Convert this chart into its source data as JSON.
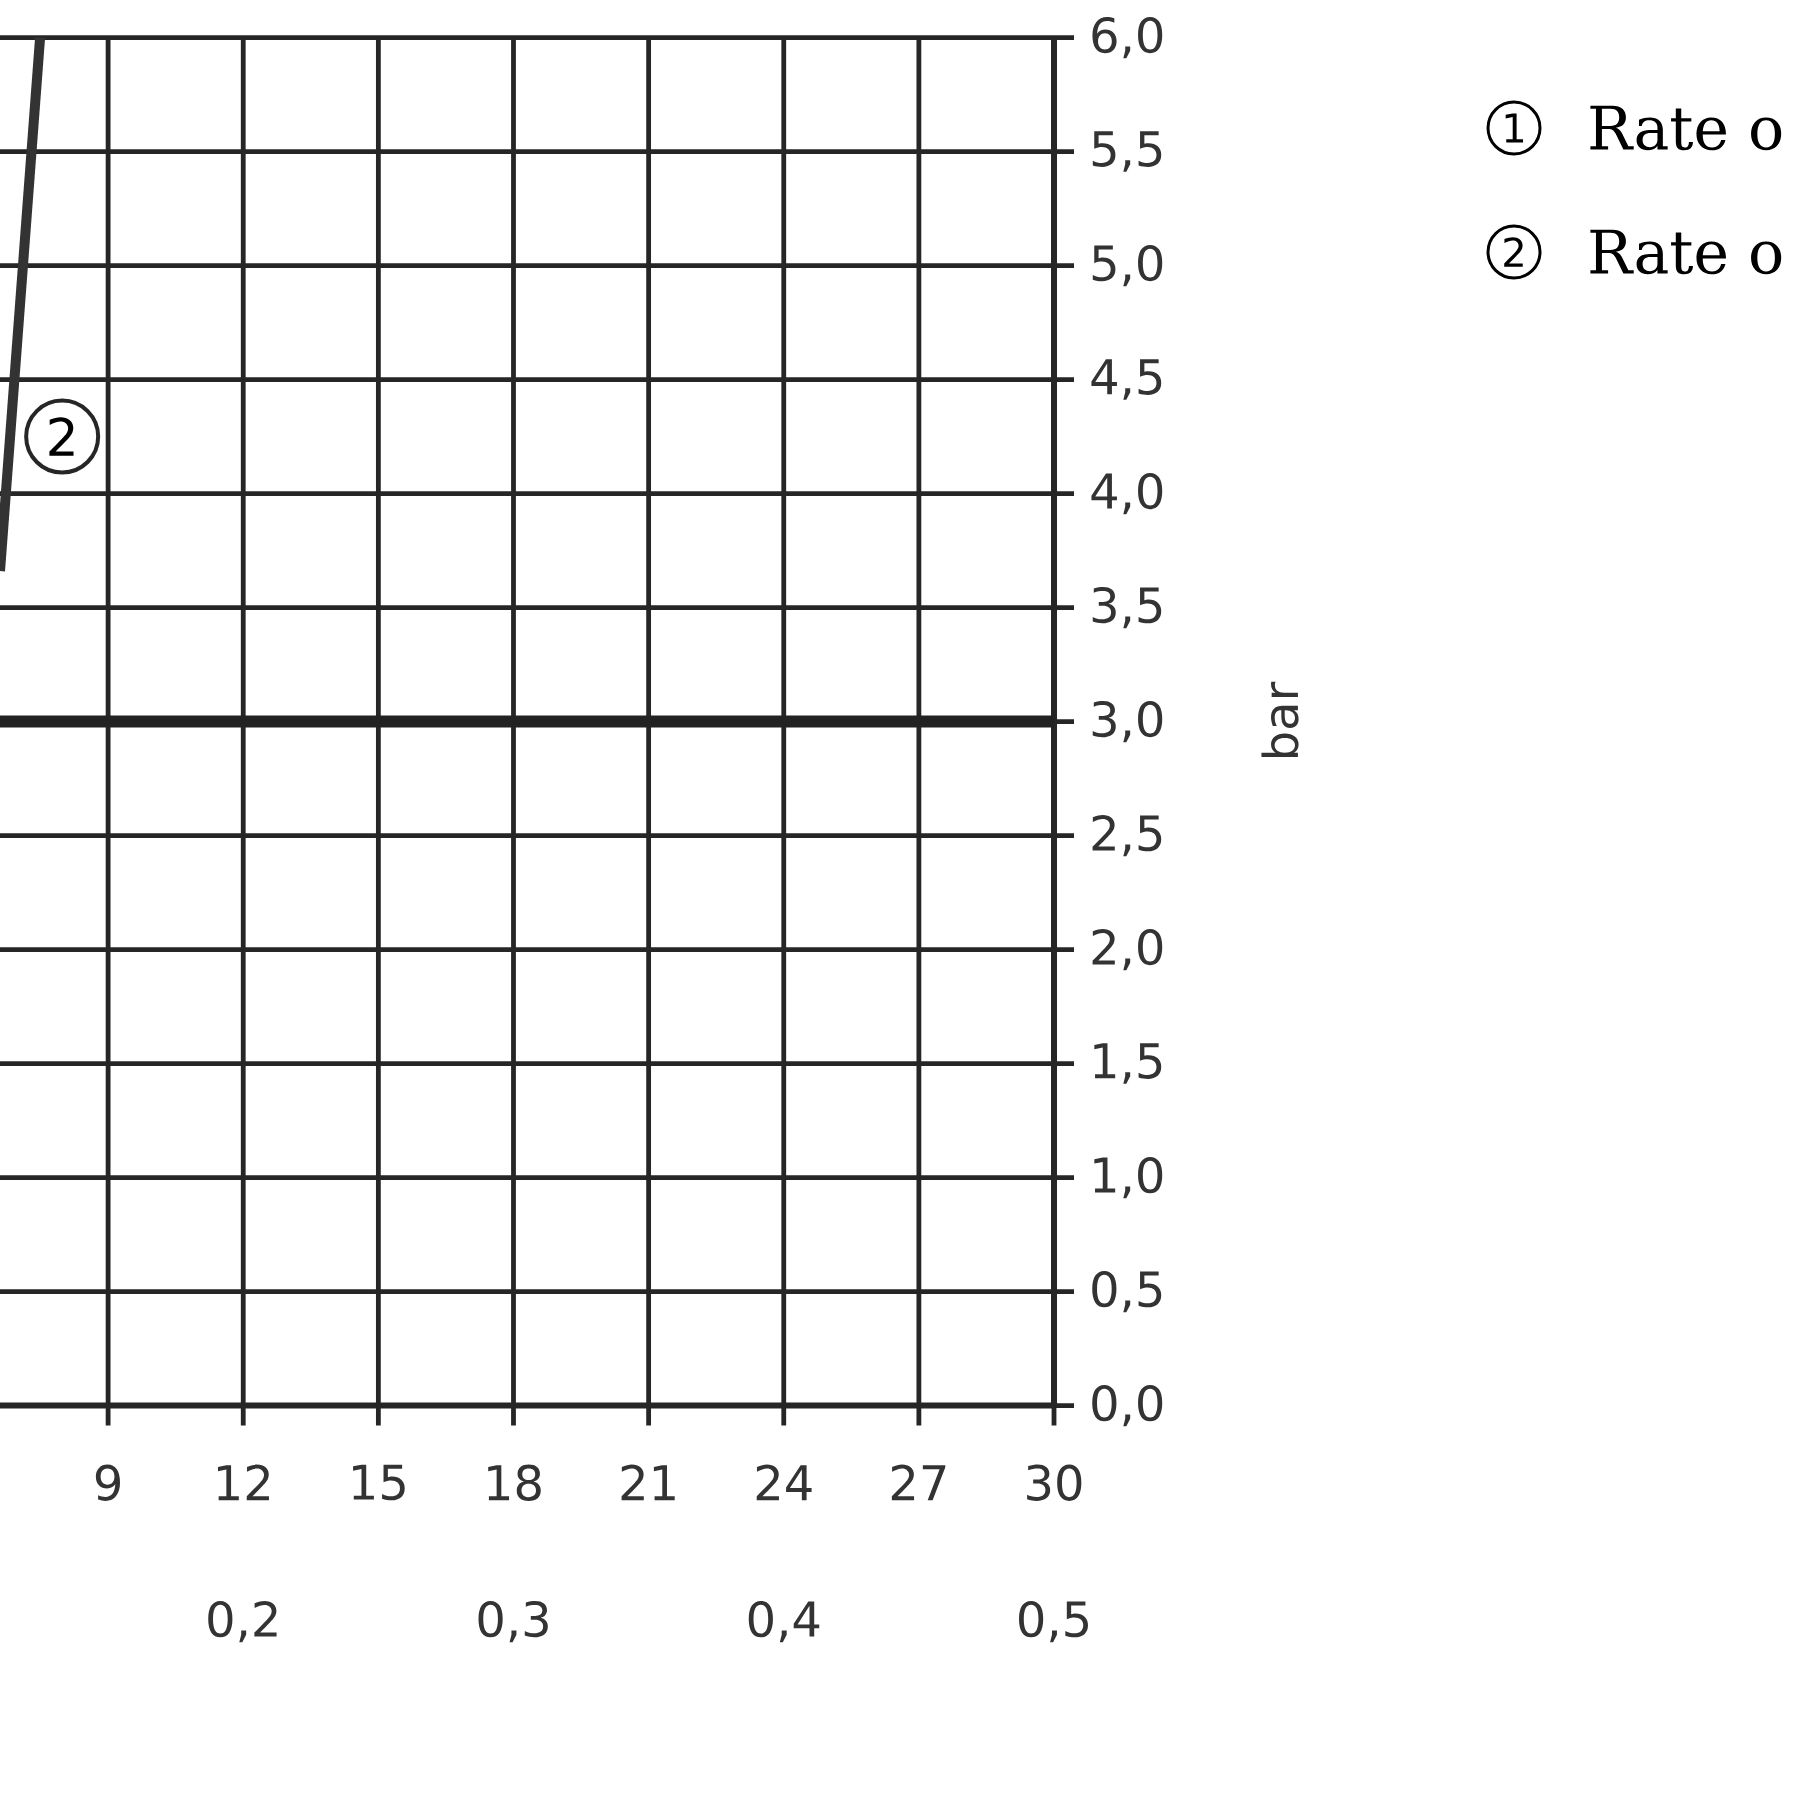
{
  "chart_data": {
    "type": "line",
    "ylabel": "bar",
    "xlim": [
      6.6,
      30
    ],
    "xticks": [
      9,
      12,
      15,
      18,
      21,
      24,
      27,
      30
    ],
    "x2lim": [
      0.11,
      0.5
    ],
    "x2ticks": [
      {
        "value": 0.2,
        "label": "0,2"
      },
      {
        "value": 0.3,
        "label": "0,3"
      },
      {
        "value": 0.4,
        "label": "0,4"
      },
      {
        "value": 0.5,
        "label": "0,5"
      }
    ],
    "ylim": [
      0,
      6
    ],
    "yticks": [
      {
        "value": 0,
        "label": "0,0"
      },
      {
        "value": 0.5,
        "label": "0,5"
      },
      {
        "value": 1,
        "label": "1,0"
      },
      {
        "value": 1.5,
        "label": "1,5"
      },
      {
        "value": 2,
        "label": "2,0"
      },
      {
        "value": 2.5,
        "label": "2,5"
      },
      {
        "value": 3,
        "label": "3,0"
      },
      {
        "value": 3.5,
        "label": "3,5"
      },
      {
        "value": 4,
        "label": "4,0"
      },
      {
        "value": 4.5,
        "label": "4,5"
      },
      {
        "value": 5,
        "label": "5,0"
      },
      {
        "value": 5.5,
        "label": "5,5"
      },
      {
        "value": 6,
        "label": "6,0"
      }
    ],
    "grid": true,
    "marker": "none",
    "line_style": "solid",
    "series": [
      {
        "color": "#333333",
        "x": [
          6.6,
          7.49
        ],
        "values": [
          3.66,
          6.0
        ]
      }
    ],
    "ref_lines": [
      {
        "axis": "y",
        "value": 3,
        "color": "#222222"
      }
    ],
    "annotations": [
      {
        "text": "2",
        "x": 7.98,
        "y": 4.25
      },
      "1",
      "Rate o",
      "2",
      "Rate o"
    ]
  }
}
